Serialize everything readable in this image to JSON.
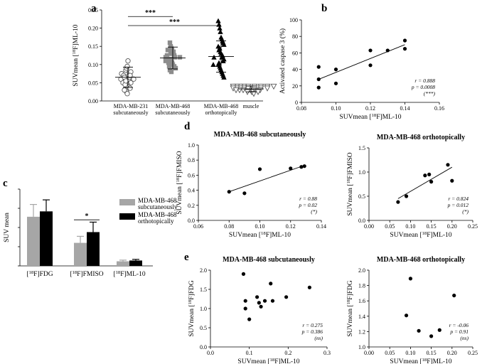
{
  "chart_data": [
    {
      "panel": "a",
      "type": "scatter",
      "ylabel": "SUVmean [18F]ML-10",
      "ylim": [
        0,
        0.25
      ],
      "yticks": [
        "0.00",
        "0.05",
        "0.10",
        "0.15",
        "0.20",
        "0.25"
      ],
      "categories": [
        {
          "line1": "MDA-MB-231",
          "line2": "subcutaneously",
          "marker": "open-circle",
          "mean": 0.065,
          "sd": 0.028,
          "values": [
            0.075,
            0.085,
            0.09,
            0.095,
            0.11,
            0.06,
            0.065,
            0.07,
            0.05,
            0.055,
            0.06,
            0.075,
            0.045,
            0.04,
            0.07,
            0.065,
            0.035,
            0.08,
            0.07,
            0.03,
            0.025,
            0.02,
            0.05,
            0.06,
            0.03,
            0.045,
            0.055
          ]
        },
        {
          "line1": "MDA-MB-468",
          "line2": "subcutaneously",
          "marker": "filled-square",
          "mean": 0.118,
          "sd": 0.03,
          "values": [
            0.16,
            0.15,
            0.145,
            0.14,
            0.13,
            0.135,
            0.125,
            0.12,
            0.13,
            0.115,
            0.12,
            0.11,
            0.105,
            0.1,
            0.115,
            0.095,
            0.1,
            0.09,
            0.085,
            0.11,
            0.08,
            0.125,
            0.14,
            0.105,
            0.095,
            0.12
          ]
        },
        {
          "line1": "MDA-MB-468",
          "line2": "orthotopically",
          "marker": "filled-triangle",
          "mean": 0.122,
          "sd": 0.043,
          "values": [
            0.22,
            0.21,
            0.2,
            0.19,
            0.175,
            0.17,
            0.165,
            0.16,
            0.155,
            0.15,
            0.14,
            0.145,
            0.135,
            0.13,
            0.12,
            0.125,
            0.11,
            0.115,
            0.1,
            0.105,
            0.095,
            0.09,
            0.085,
            0.08,
            0.075,
            0.07,
            0.065,
            0.1,
            0.12
          ]
        },
        {
          "line1": "muscle",
          "line2": "",
          "marker": "open-triangle-down",
          "mean": 0.033,
          "sd": 0.008,
          "values": [
            0.04,
            0.04,
            0.04,
            0.04,
            0.04,
            0.04,
            0.04,
            0.04,
            0.04,
            0.035,
            0.035,
            0.035,
            0.035,
            0.035,
            0.035,
            0.035,
            0.035,
            0.03,
            0.03,
            0.03,
            0.03,
            0.03,
            0.03,
            0.025,
            0.025,
            0.025,
            0.02
          ]
        }
      ],
      "significance": [
        {
          "label": "***",
          "from": 0,
          "to": 1,
          "y": 0.232
        },
        {
          "label": "***",
          "from": 0,
          "to": 2,
          "y": 0.207
        }
      ]
    },
    {
      "panel": "b",
      "type": "scatter",
      "xlabel": "SUVmean [18F]ML-10",
      "ylabel": "Activated caspase 3 (%)",
      "xlim": [
        0.08,
        0.16
      ],
      "ylim": [
        0,
        100
      ],
      "xticks": [
        "0.08",
        "0.10",
        "0.12",
        "0.14",
        "0.16"
      ],
      "yticks": [
        "0",
        "20",
        "40",
        "60",
        "80",
        "100"
      ],
      "x": [
        0.09,
        0.09,
        0.09,
        0.1,
        0.1,
        0.12,
        0.12,
        0.13,
        0.14,
        0.14
      ],
      "y": [
        43,
        28,
        18,
        40,
        23,
        45,
        63,
        63,
        75,
        65
      ],
      "fit": {
        "x": [
          0.09,
          0.14
        ],
        "y": [
          28,
          70
        ]
      },
      "stats": [
        "r = 0.888",
        "p = 0.0008",
        "(***)"
      ]
    },
    {
      "panel": "c",
      "type": "bar",
      "ylabel": "SUV mean",
      "ylim": [
        0,
        2.0
      ],
      "categories": [
        "[18F]FDG",
        "[18F]FMISO",
        "[18F]ML-10"
      ],
      "series": [
        {
          "name": "MDA-MB-468 subcutaneously",
          "color": "#a6a6a6",
          "values": [
            1.28,
            0.6,
            0.12
          ],
          "errors": [
            0.32,
            0.17,
            0.03
          ]
        },
        {
          "name": "MDA-MB-468 orthotopically",
          "color": "#000000",
          "values": [
            1.42,
            0.88,
            0.14
          ],
          "errors": [
            0.3,
            0.26,
            0.03
          ]
        }
      ],
      "legend": [
        {
          "line1": "MDA-MB-468",
          "line2": "subcutaneously"
        },
        {
          "line1": "MDA-MB-468",
          "line2": "orthotopically"
        }
      ],
      "significance": [
        {
          "label": "*",
          "category": 1
        }
      ]
    },
    {
      "panel": "d",
      "type": "scatter",
      "title": "MDA-MB-468 subcutaneously",
      "xlabel": "SUVmean [18F]ML-10",
      "ylabel": "SUVmean [18F]FMISO",
      "xlim": [
        0.06,
        0.14
      ],
      "ylim": [
        0,
        1.0
      ],
      "xticks": [
        "0.06",
        "0.08",
        "0.10",
        "0.12",
        "0.14"
      ],
      "yticks": [
        "0.0",
        "0.2",
        "0.4",
        "0.6",
        "0.8",
        "1.0"
      ],
      "x": [
        0.08,
        0.09,
        0.1,
        0.12,
        0.127,
        0.129
      ],
      "y": [
        0.38,
        0.36,
        0.68,
        0.69,
        0.71,
        0.72
      ],
      "fit": {
        "x": [
          0.08,
          0.129
        ],
        "y": [
          0.38,
          0.73
        ]
      },
      "stats": [
        "r = 0.88",
        "p = 0.02",
        "(*)"
      ]
    },
    {
      "panel": "d2",
      "type": "scatter",
      "title": "MDA-MB-468 orthotopically",
      "xlabel": "SUVmean [18F]ML-10",
      "ylabel": "SUVmean [18F]FMISO",
      "xlim": [
        0.0,
        0.25
      ],
      "ylim": [
        0,
        1.5
      ],
      "xticks": [
        "0.00",
        "0.05",
        "0.10",
        "0.15",
        "0.20",
        "0.25"
      ],
      "yticks": [
        "0.0",
        "0.5",
        "1.0",
        "1.5"
      ],
      "x": [
        0.07,
        0.09,
        0.135,
        0.145,
        0.15,
        0.19,
        0.2
      ],
      "y": [
        0.38,
        0.5,
        0.93,
        0.95,
        0.8,
        1.15,
        0.82
      ],
      "fit": {
        "x": [
          0.07,
          0.2
        ],
        "y": [
          0.45,
          1.1
        ]
      },
      "stats": [
        "r = 0.824",
        "p = 0.012",
        "(*)"
      ]
    },
    {
      "panel": "e",
      "type": "scatter",
      "title": "MDA-MB-468 subcutaneously",
      "xlabel": "SUVmean [18F]ML-10",
      "ylabel": "SUVmean [18F]FDG",
      "xlim": [
        0.0,
        0.3
      ],
      "ylim": [
        0,
        2.0
      ],
      "xticks": [
        "0.0",
        "0.1",
        "0.2",
        "0.3"
      ],
      "yticks": [
        "0.0",
        "0.5",
        "1.0",
        "1.5",
        "2.0"
      ],
      "x": [
        0.085,
        0.09,
        0.09,
        0.1,
        0.12,
        0.125,
        0.13,
        0.14,
        0.155,
        0.16,
        0.195,
        0.255
      ],
      "y": [
        1.9,
        1.2,
        1.0,
        0.72,
        1.3,
        1.15,
        1.05,
        1.2,
        1.65,
        1.2,
        1.3,
        1.55
      ],
      "stats": [
        "r = 0.275",
        "p = 0.386",
        "(ns)"
      ]
    },
    {
      "panel": "e2",
      "type": "scatter",
      "title": "MDA-MB-468 orthotopically",
      "xlabel": "SUVmean [18F]ML-10",
      "ylabel": "SUVmean [18F]FDG",
      "xlim": [
        0.0,
        0.25
      ],
      "ylim": [
        1.0,
        2.0
      ],
      "xticks": [
        "0.00",
        "0.05",
        "0.10",
        "0.15",
        "0.20",
        "0.25"
      ],
      "yticks": [
        "1.0",
        "1.2",
        "1.4",
        "1.6",
        "1.8",
        "2.0"
      ],
      "x": [
        0.09,
        0.1,
        0.12,
        0.15,
        0.17,
        0.205
      ],
      "y": [
        1.41,
        1.89,
        1.21,
        1.14,
        1.22,
        1.67
      ],
      "stats": [
        "r = -0.06",
        "p = 0.91",
        "(ns)"
      ]
    }
  ]
}
